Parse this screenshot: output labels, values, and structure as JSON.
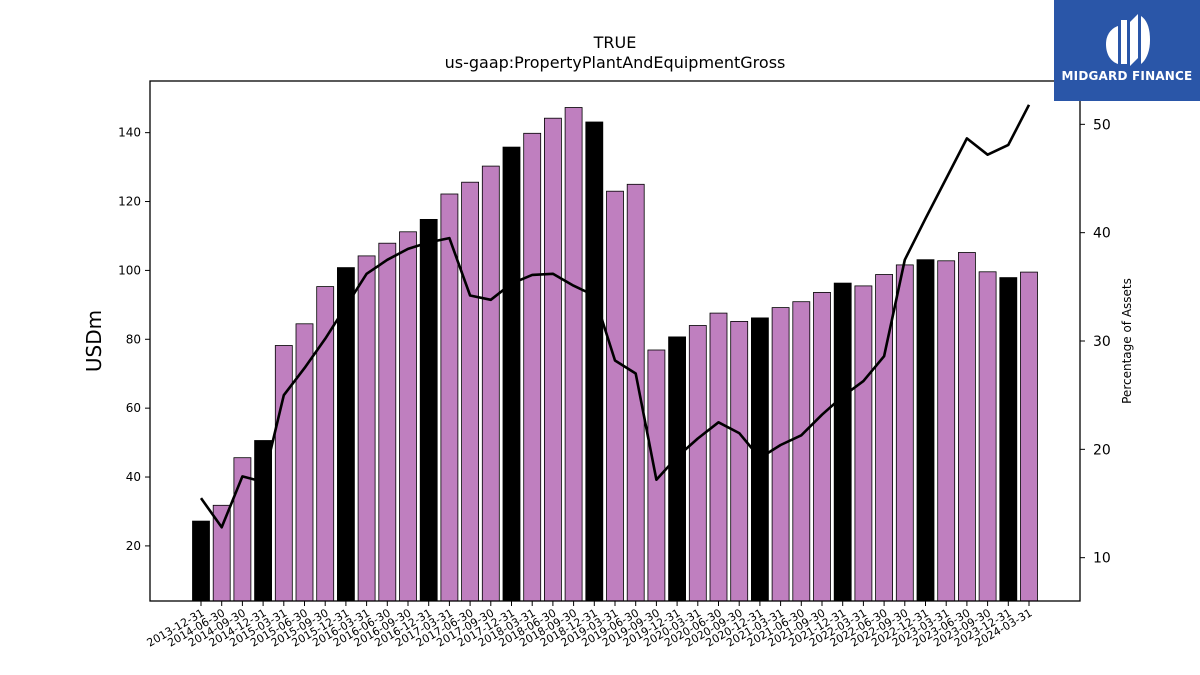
{
  "logo": {
    "text": "MIDGARD FINANCE",
    "icon": "midgard-logo-icon",
    "background": "#2a56a8"
  },
  "chart_data": {
    "type": "bar",
    "title": "TRUE",
    "subtitle": "us-gaap:PropertyPlantAndEquipmentGross",
    "ylabel": "USDm",
    "y2label": "Percentage of Assets",
    "ylim": [
      4,
      155
    ],
    "y2lim": [
      6,
      54
    ],
    "yticks": [
      20,
      40,
      60,
      80,
      100,
      120,
      140
    ],
    "y2ticks": [
      10,
      20,
      30,
      40,
      50
    ],
    "grid": false,
    "colors": {
      "quarterly": "#bf7fbf",
      "annual": "#000000",
      "line": "#000000"
    },
    "categories": [
      "2013-12-31",
      "2014-06-30",
      "2014-09-30",
      "2014-12-31",
      "2015-03-31",
      "2015-06-30",
      "2015-09-30",
      "2015-12-31",
      "2016-03-31",
      "2016-06-30",
      "2016-09-30",
      "2016-12-31",
      "2017-03-31",
      "2017-06-30",
      "2017-09-30",
      "2017-12-31",
      "2018-03-31",
      "2018-06-30",
      "2018-09-30",
      "2018-12-31",
      "2019-03-31",
      "2019-06-30",
      "2019-09-30",
      "2019-12-31",
      "2020-03-31",
      "2020-06-30",
      "2020-09-30",
      "2020-12-31",
      "2021-03-31",
      "2021-06-30",
      "2021-09-30",
      "2021-12-31",
      "2022-03-31",
      "2022-06-30",
      "2022-09-30",
      "2022-12-31",
      "2023-03-31",
      "2023-06-30",
      "2023-09-30",
      "2023-12-31",
      "2024-03-31"
    ],
    "series": [
      {
        "type": "bar",
        "axis": "left",
        "values": [
          27.2,
          31.8,
          45.6,
          50.6,
          78.2,
          84.5,
          95.3,
          100.8,
          104.2,
          107.9,
          111.2,
          114.8,
          122.2,
          125.6,
          130.3,
          135.8,
          139.8,
          144.2,
          147.3,
          143.1,
          123.0,
          125.0,
          76.9,
          80.7,
          84.0,
          87.6,
          85.2,
          86.2,
          89.2,
          90.9,
          93.6,
          96.3,
          95.5,
          98.8,
          101.6,
          103.1,
          102.8,
          105.2,
          99.6,
          97.9,
          99.5
        ],
        "annual": [
          true,
          false,
          false,
          true,
          false,
          false,
          false,
          true,
          false,
          false,
          false,
          true,
          false,
          false,
          false,
          true,
          false,
          false,
          false,
          true,
          false,
          false,
          false,
          true,
          false,
          false,
          false,
          true,
          false,
          false,
          false,
          true,
          false,
          false,
          false,
          true,
          false,
          false,
          false,
          true,
          false
        ]
      },
      {
        "type": "line",
        "axis": "right",
        "values": [
          15.5,
          12.8,
          17.5,
          17.0,
          25.0,
          27.5,
          30.2,
          33.2,
          36.2,
          37.5,
          38.5,
          39.1,
          39.5,
          34.2,
          33.8,
          35.3,
          36.1,
          36.2,
          35.1,
          34.2,
          28.2,
          27.0,
          17.2,
          19.3,
          21.0,
          22.5,
          21.5,
          19.2,
          20.4,
          21.3,
          23.2,
          24.9,
          26.3,
          28.6,
          37.5,
          41.3,
          45.0,
          48.7,
          47.2,
          48.1,
          51.8
        ]
      }
    ]
  }
}
